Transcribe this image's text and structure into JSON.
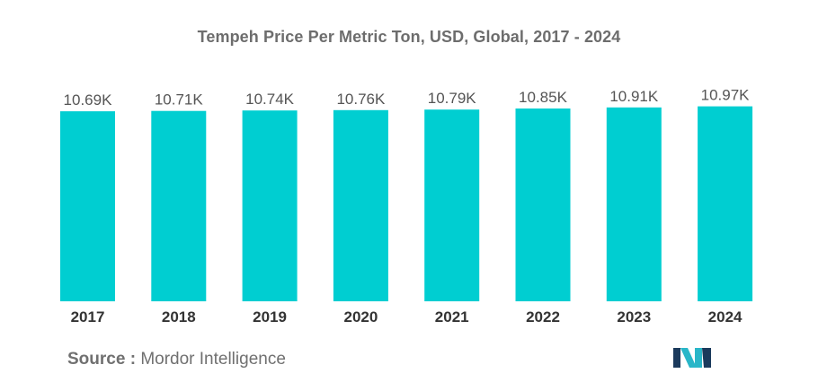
{
  "chart_data": {
    "type": "bar",
    "title": "Tempeh Price Per Metric Ton, USD, Global, 2017 - 2024",
    "categories": [
      "2017",
      "2018",
      "2019",
      "2020",
      "2021",
      "2022",
      "2023",
      "2024"
    ],
    "values": [
      10690,
      10710,
      10740,
      10760,
      10790,
      10850,
      10910,
      10970
    ],
    "data_labels": [
      "10.69K",
      "10.71K",
      "10.74K",
      "10.76K",
      "10.79K",
      "10.85K",
      "10.91K",
      "10.97K"
    ],
    "xlabel": "",
    "ylabel": "",
    "ylim": [
      0,
      11000
    ],
    "grid": false,
    "y_axis_visible": false,
    "bar_color": "#00CED1"
  },
  "source": {
    "key": "Source :",
    "value": "Mordor Intelligence"
  },
  "logo": {
    "icon": "mordor-intelligence-logo",
    "colors": [
      "#1b3a5c",
      "#29b6c8"
    ]
  }
}
